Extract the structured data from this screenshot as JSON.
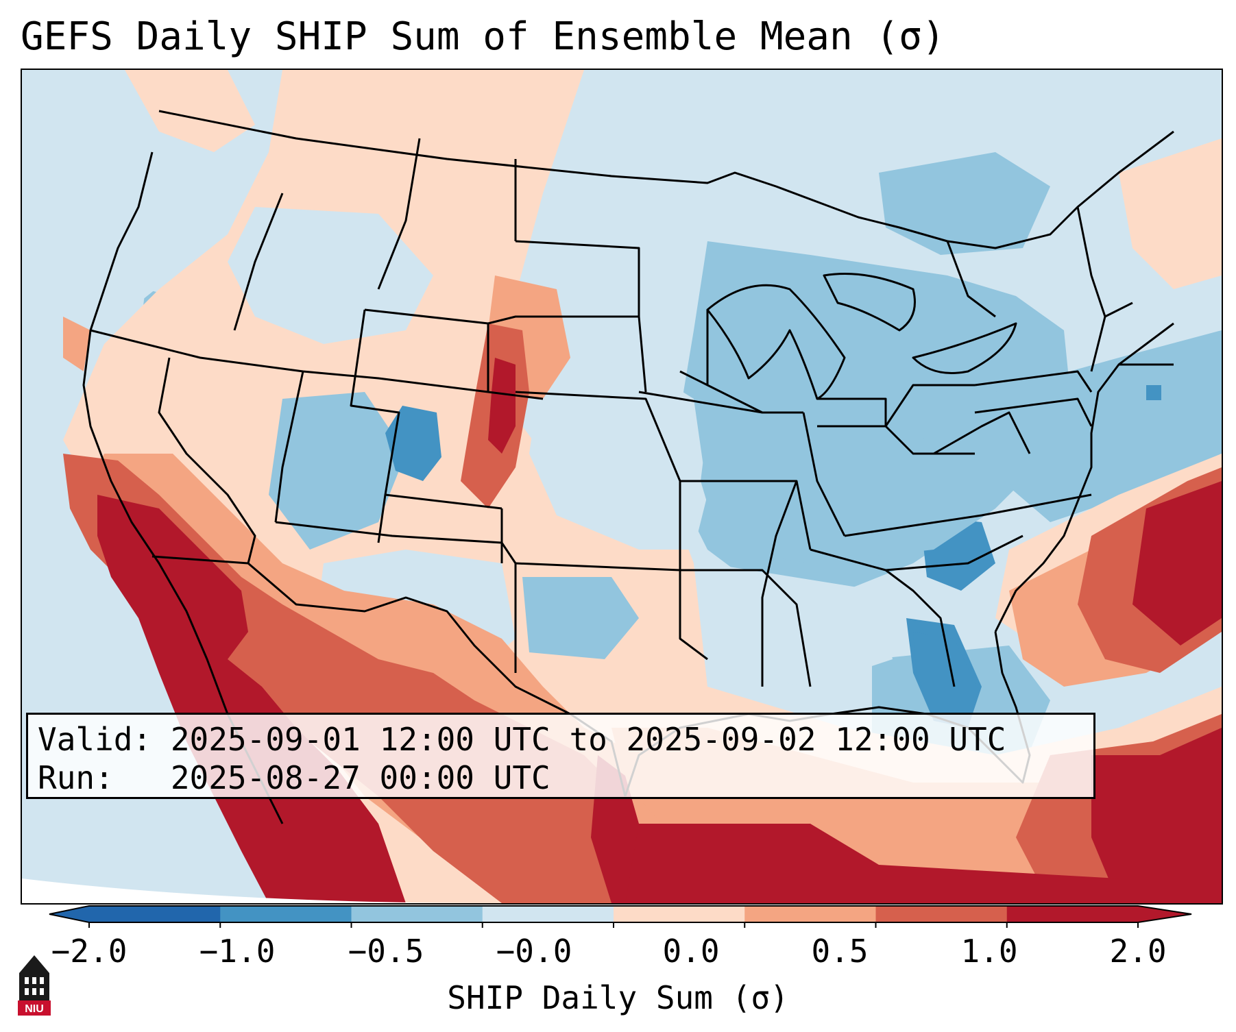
{
  "title": "GEFS Daily SHIP Sum of Ensemble Mean (σ)",
  "info": {
    "valid_line": "Valid: 2025-09-01 12:00 UTC to 2025-09-02 12:00 UTC",
    "run_line": "Run:   2025-08-27 00:00 UTC"
  },
  "colorbar": {
    "label": "SHIP Daily Sum (σ)",
    "ticks": [
      "−2.0",
      "−1.0",
      "−0.5",
      "−0.0",
      "0.0",
      "0.5",
      "1.0",
      "2.0"
    ],
    "colors": [
      "#2166ac",
      "#4393c3",
      "#92c5de",
      "#d1e5f0",
      "#fddbc7",
      "#f4a582",
      "#d6604d",
      "#b2182b"
    ]
  },
  "logo": {
    "text": "NIU",
    "icon": "niu-logo-icon"
  }
}
